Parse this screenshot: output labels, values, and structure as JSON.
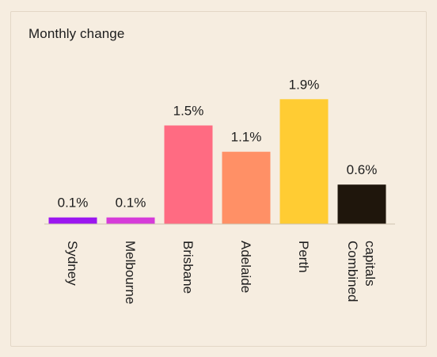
{
  "chart_data": {
    "type": "bar",
    "title": "Monthly change",
    "categories": [
      "Sydney",
      "Melbourne",
      "Brisbane",
      "Adelaide",
      "Perth",
      "Combined capitals"
    ],
    "category_lines": [
      [
        "Sydney"
      ],
      [
        "Melbourne"
      ],
      [
        "Brisbane"
      ],
      [
        "Adelaide"
      ],
      [
        "Perth"
      ],
      [
        "Combined",
        "capitals"
      ]
    ],
    "values": [
      0.1,
      0.1,
      1.5,
      1.1,
      1.9,
      0.6
    ],
    "data_labels": [
      "0.1%",
      "0.1%",
      "1.5%",
      "1.1%",
      "1.9%",
      "0.6%"
    ],
    "colors": [
      "#9b16f0",
      "#d63bd9",
      "#ff6b82",
      "#ff9066",
      "#ffcc33",
      "#1f160c"
    ],
    "ylim": [
      0,
      2
    ],
    "xlabel": "",
    "ylabel": "",
    "grid": false,
    "legend": "none"
  }
}
